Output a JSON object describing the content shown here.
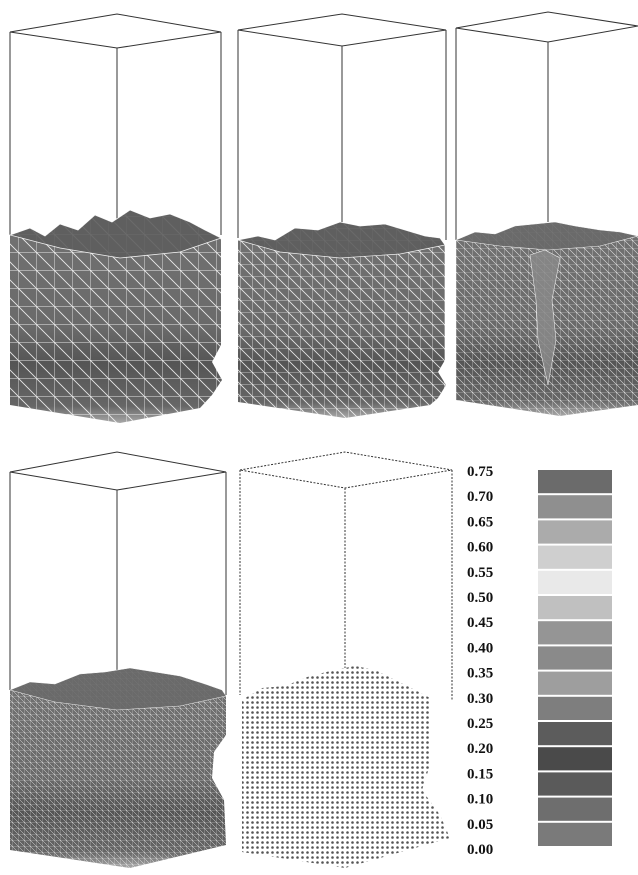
{
  "legend": {
    "labels": [
      "0.75",
      "0.70",
      "0.65",
      "0.60",
      "0.55",
      "0.50",
      "0.45",
      "0.40",
      "0.35",
      "0.30",
      "0.25",
      "0.20",
      "0.15",
      "0.10",
      "0.05",
      "0.00"
    ],
    "band_colors": [
      "#6b6b6b",
      "#8f8f8f",
      "#ababab",
      "#cfcfcf",
      "#e9e9e9",
      "#c0c0c0",
      "#959595",
      "#8a8a8a",
      "#9e9e9e",
      "#7e7e7e",
      "#5c5c5c",
      "#4a4a4a",
      "#5a5a5a",
      "#6e6e6e",
      "#7a7a7a"
    ]
  },
  "panels": [
    {
      "id": "panel-1",
      "mesh": "coarse"
    },
    {
      "id": "panel-2",
      "mesh": "medium"
    },
    {
      "id": "panel-3",
      "mesh": "fine"
    },
    {
      "id": "panel-4",
      "mesh": "finer"
    },
    {
      "id": "panel-5",
      "mesh": "particles"
    }
  ],
  "colors": {
    "box_outline": "#333333",
    "fill_top": "#6a6a6a",
    "fill_upper": "#787878",
    "fill_lower": "#585858",
    "fill_bottom": "#9a9a9a",
    "mesh_line": "#ffffff"
  }
}
